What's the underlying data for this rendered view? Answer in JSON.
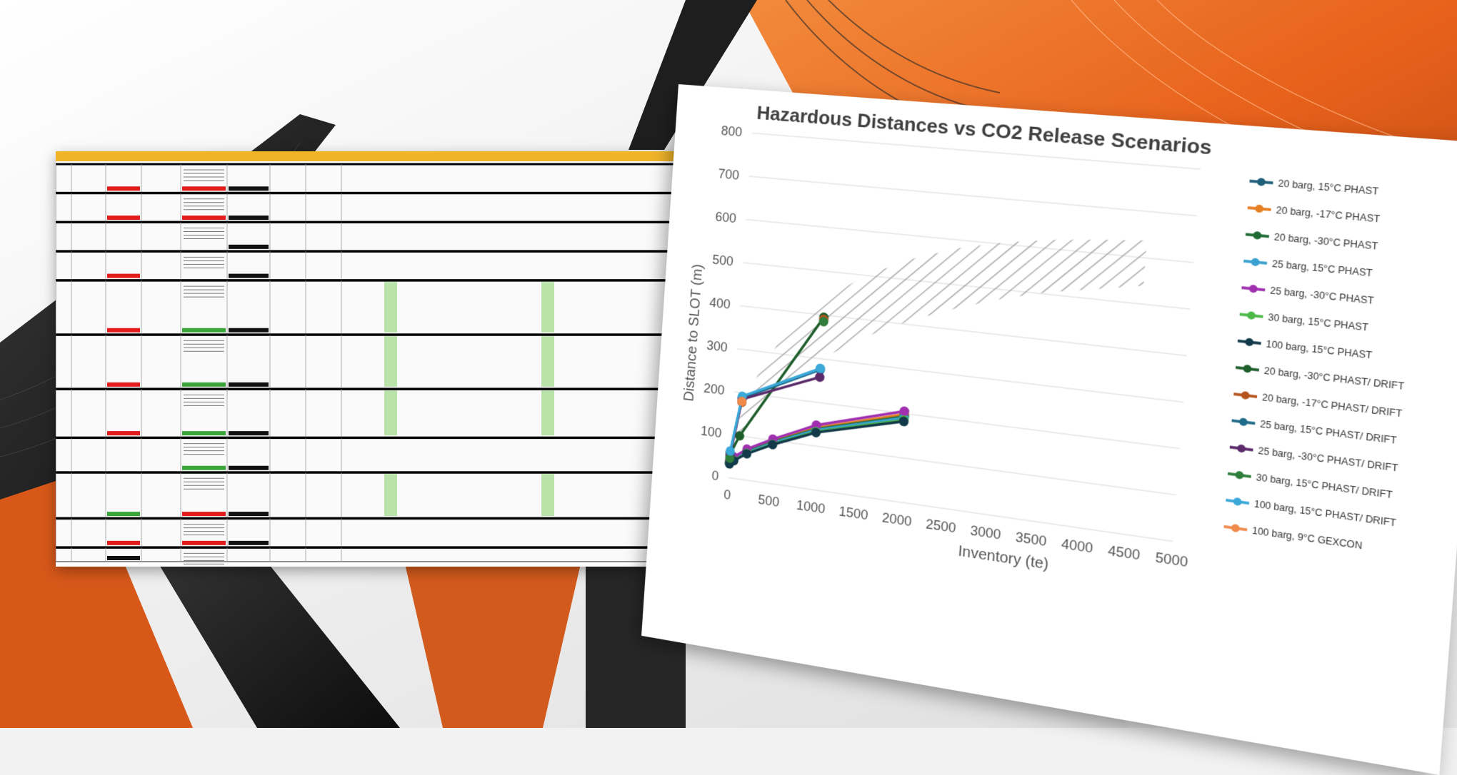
{
  "background": {
    "accent": "#e8621c",
    "dark": "#1c1c1c",
    "light": "#f4f4f4"
  },
  "spreadsheet": {
    "header_color": "#f0b429",
    "rows": [
      {
        "height": 1.0,
        "cells": [
          "w",
          "r",
          "w",
          "r",
          "b"
        ]
      },
      {
        "height": 1.0,
        "cells": [
          "w",
          "r",
          "w",
          "r",
          "b"
        ]
      },
      {
        "height": 1.0,
        "cells": [
          "w",
          "w",
          "w",
          "w",
          "b"
        ]
      },
      {
        "height": 1.0,
        "cells": [
          "w",
          "r",
          "w",
          "w",
          "b"
        ]
      },
      {
        "height": 1.9,
        "cells": [
          "w",
          "r",
          "w",
          "g",
          "b"
        ]
      },
      {
        "height": 1.9,
        "cells": [
          "w",
          "r",
          "w",
          "g",
          "b"
        ]
      },
      {
        "height": 1.7,
        "cells": [
          "w",
          "r",
          "w",
          "g",
          "b"
        ]
      },
      {
        "height": 1.2,
        "cells": [
          "w",
          "w",
          "w",
          "g",
          "b"
        ]
      },
      {
        "height": 1.6,
        "cells": [
          "w",
          "g",
          "w",
          "r",
          "b"
        ]
      },
      {
        "height": 1.0,
        "cells": [
          "w",
          "r",
          "w",
          "r",
          "b"
        ]
      },
      {
        "height": 0.5,
        "cells": [
          "w",
          "b",
          "w",
          "w",
          "w"
        ]
      }
    ]
  },
  "chart_data": {
    "type": "scatter",
    "title": "Hazardous Distances vs CO2 Release Scenarios",
    "xlabel": "Inventory (te)",
    "ylabel": "Distance to SLOT (m)",
    "xlim": [
      0,
      5000
    ],
    "ylim": [
      0,
      800
    ],
    "xticks": [
      0,
      500,
      1000,
      1500,
      2000,
      2500,
      3000,
      3500,
      4000,
      4500,
      5000
    ],
    "yticks": [
      0,
      100,
      200,
      300,
      400,
      500,
      600,
      700,
      800
    ],
    "grid": true,
    "legend_position": "right",
    "hatched_region": {
      "upper": [
        [
          0,
          80
        ],
        [
          200,
          220
        ],
        [
          500,
          330
        ],
        [
          1000,
          440
        ],
        [
          1500,
          505
        ],
        [
          2000,
          550
        ],
        [
          2500,
          583
        ],
        [
          3000,
          605
        ],
        [
          3500,
          620
        ],
        [
          4000,
          630
        ],
        [
          4500,
          638
        ]
      ],
      "lower": [
        [
          0,
          50
        ],
        [
          200,
          130
        ],
        [
          500,
          210
        ],
        [
          1000,
          300
        ],
        [
          1500,
          362
        ],
        [
          2000,
          410
        ],
        [
          2500,
          448
        ],
        [
          3000,
          480
        ],
        [
          3500,
          505
        ],
        [
          4000,
          522
        ],
        [
          4500,
          540
        ]
      ]
    },
    "series": [
      {
        "name": "20 barg, 15°C PHAST",
        "color": "#1f5f7a",
        "points": [
          [
            0,
            35
          ],
          [
            50,
            45
          ],
          [
            200,
            65
          ],
          [
            500,
            95
          ],
          [
            1000,
            140
          ],
          [
            2000,
            195
          ]
        ]
      },
      {
        "name": "20 barg, -17°C PHAST",
        "color": "#e67e22",
        "points": [
          [
            0,
            38
          ],
          [
            50,
            48
          ],
          [
            200,
            68
          ],
          [
            500,
            98
          ],
          [
            1000,
            142
          ],
          [
            2000,
            198
          ]
        ]
      },
      {
        "name": "20 barg, -30°C PHAST",
        "color": "#1e6b35",
        "points": [
          [
            0,
            36
          ],
          [
            50,
            46
          ],
          [
            200,
            66
          ],
          [
            500,
            96
          ],
          [
            1000,
            139
          ],
          [
            2000,
            193
          ]
        ]
      },
      {
        "name": "25 barg, 15°C PHAST",
        "color": "#3aa0d0",
        "points": [
          [
            0,
            34
          ],
          [
            50,
            44
          ],
          [
            200,
            64
          ],
          [
            500,
            94
          ],
          [
            1000,
            137
          ],
          [
            2000,
            190
          ]
        ]
      },
      {
        "name": "25 barg, -30°C PHAST",
        "color": "#a030b0",
        "points": [
          [
            0,
            40
          ],
          [
            50,
            50
          ],
          [
            200,
            72
          ],
          [
            500,
            103
          ],
          [
            1000,
            148
          ],
          [
            2000,
            205
          ]
        ]
      },
      {
        "name": "30 barg, 15°C PHAST",
        "color": "#4cb848",
        "points": [
          [
            0,
            33
          ],
          [
            50,
            42
          ],
          [
            200,
            62
          ],
          [
            500,
            91
          ],
          [
            1000,
            133
          ],
          [
            2000,
            185
          ]
        ]
      },
      {
        "name": "100 barg, 15°C PHAST",
        "color": "#123a4a",
        "points": [
          [
            0,
            32
          ],
          [
            50,
            41
          ],
          [
            200,
            61
          ],
          [
            500,
            90
          ],
          [
            1000,
            131
          ],
          [
            2000,
            182
          ]
        ]
      },
      {
        "name": "20 barg, -30°C PHAST/ DRIFT",
        "color": "#1e5e2a",
        "points": [
          [
            0,
            55
          ],
          [
            100,
            100
          ],
          [
            1000,
            395
          ]
        ]
      },
      {
        "name": "20 barg, -17°C PHAST/ DRIFT",
        "color": "#b5541c",
        "points": [
          [
            100,
            178
          ],
          [
            1000,
            390
          ]
        ]
      },
      {
        "name": "25 barg, 15°C PHAST/ DRIFT",
        "color": "#1f6b8a",
        "points": [
          [
            0,
            58
          ],
          [
            100,
            188
          ],
          [
            1000,
            275
          ]
        ]
      },
      {
        "name": "25 barg, -30°C PHAST/ DRIFT",
        "color": "#5a2a6a",
        "points": [
          [
            0,
            50
          ],
          [
            100,
            185
          ],
          [
            1000,
            258
          ]
        ]
      },
      {
        "name": "30 barg, 15°C PHAST/ DRIFT",
        "color": "#2e7d3a",
        "points": [
          [
            0,
            45
          ],
          [
            1000,
            385
          ]
        ]
      },
      {
        "name": "100 barg, 15°C PHAST/ DRIFT",
        "color": "#3aa8d8",
        "points": [
          [
            0,
            62
          ],
          [
            100,
            192
          ],
          [
            1000,
            278
          ]
        ]
      },
      {
        "name": "100 barg, 9°C GEXCON",
        "color": "#f08a4b",
        "points": [
          [
            100,
            180
          ]
        ]
      }
    ]
  }
}
